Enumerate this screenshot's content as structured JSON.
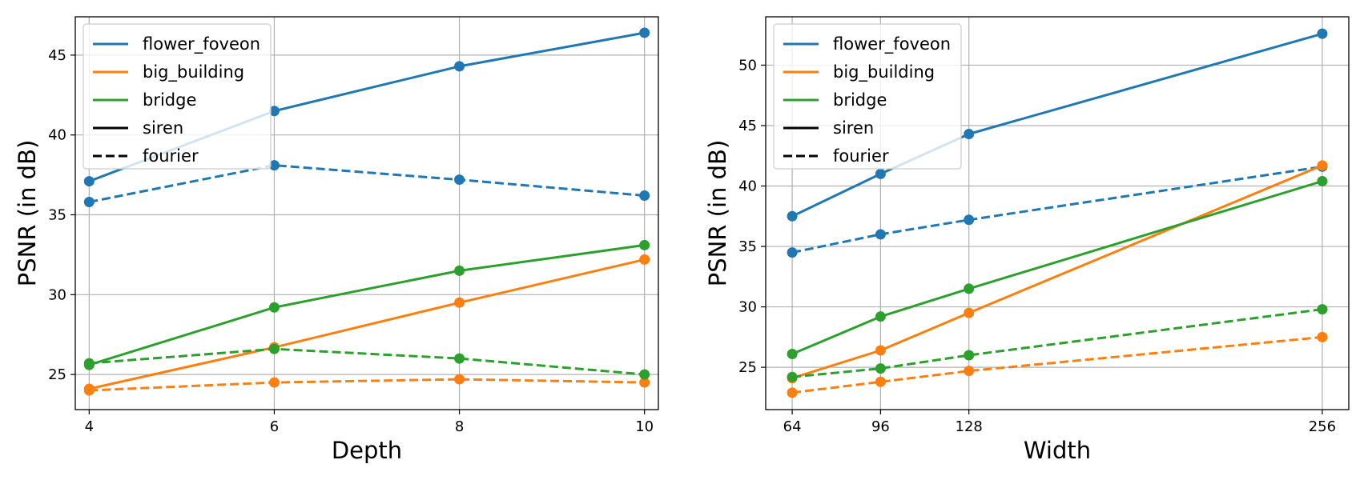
{
  "chart_data": [
    {
      "type": "line",
      "xlabel": "Depth",
      "ylabel": "PSNR (in dB)",
      "xlim": [
        3.85,
        10.15
      ],
      "ylim": [
        22.8,
        47.4
      ],
      "xticks": [
        4,
        6,
        8,
        10
      ],
      "yticks": [
        25,
        30,
        35,
        40,
        45
      ],
      "grid": true,
      "legend": {
        "position": "top-left",
        "entries": [
          {
            "label": "flower_foveon",
            "color": "#1f77b4",
            "style": "solid"
          },
          {
            "label": "big_building",
            "color": "#ff7f0e",
            "style": "solid"
          },
          {
            "label": "bridge",
            "color": "#2ca02c",
            "style": "solid"
          },
          {
            "label": "siren",
            "color": "#000000",
            "style": "solid"
          },
          {
            "label": "fourier",
            "color": "#000000",
            "style": "dashed"
          }
        ]
      },
      "x": [
        4,
        6,
        8,
        10
      ],
      "series": [
        {
          "image": "flower_foveon",
          "model": "siren",
          "color": "#1f77b4",
          "dashed": false,
          "values": [
            37.1,
            41.5,
            44.3,
            46.4
          ]
        },
        {
          "image": "flower_foveon",
          "model": "fourier",
          "color": "#1f77b4",
          "dashed": true,
          "values": [
            35.8,
            38.1,
            37.2,
            36.2
          ]
        },
        {
          "image": "big_building",
          "model": "siren",
          "color": "#ff7f0e",
          "dashed": false,
          "values": [
            24.1,
            26.7,
            29.5,
            32.2
          ]
        },
        {
          "image": "big_building",
          "model": "fourier",
          "color": "#ff7f0e",
          "dashed": true,
          "values": [
            24.0,
            24.5,
            24.7,
            24.5
          ]
        },
        {
          "image": "bridge",
          "model": "siren",
          "color": "#2ca02c",
          "dashed": false,
          "values": [
            25.6,
            29.2,
            31.5,
            33.1
          ]
        },
        {
          "image": "bridge",
          "model": "fourier",
          "color": "#2ca02c",
          "dashed": true,
          "values": [
            25.7,
            26.6,
            26.0,
            25.0
          ]
        }
      ]
    },
    {
      "type": "line",
      "xlabel": "Width",
      "ylabel": "PSNR (in dB)",
      "xlim": [
        54.4,
        265.6
      ],
      "ylim": [
        21.5,
        54.0
      ],
      "xticks": [
        64,
        96,
        128,
        256
      ],
      "yticks": [
        25,
        30,
        35,
        40,
        45,
        50
      ],
      "grid": true,
      "legend": {
        "position": "top-left",
        "entries": [
          {
            "label": "flower_foveon",
            "color": "#1f77b4",
            "style": "solid"
          },
          {
            "label": "big_building",
            "color": "#ff7f0e",
            "style": "solid"
          },
          {
            "label": "bridge",
            "color": "#2ca02c",
            "style": "solid"
          },
          {
            "label": "siren",
            "color": "#000000",
            "style": "solid"
          },
          {
            "label": "fourier",
            "color": "#000000",
            "style": "dashed"
          }
        ]
      },
      "x": [
        64,
        96,
        128,
        256
      ],
      "series": [
        {
          "image": "flower_foveon",
          "model": "siren",
          "color": "#1f77b4",
          "dashed": false,
          "values": [
            37.5,
            41.0,
            44.3,
            52.6
          ]
        },
        {
          "image": "flower_foveon",
          "model": "fourier",
          "color": "#1f77b4",
          "dashed": true,
          "values": [
            34.5,
            36.0,
            37.2,
            41.6
          ]
        },
        {
          "image": "big_building",
          "model": "siren",
          "color": "#ff7f0e",
          "dashed": false,
          "values": [
            24.1,
            26.4,
            29.5,
            41.7
          ]
        },
        {
          "image": "big_building",
          "model": "fourier",
          "color": "#ff7f0e",
          "dashed": true,
          "values": [
            22.9,
            23.8,
            24.7,
            27.5
          ]
        },
        {
          "image": "bridge",
          "model": "siren",
          "color": "#2ca02c",
          "dashed": false,
          "values": [
            26.1,
            29.2,
            31.5,
            40.4
          ]
        },
        {
          "image": "bridge",
          "model": "fourier",
          "color": "#2ca02c",
          "dashed": true,
          "values": [
            24.2,
            24.9,
            26.0,
            29.8
          ]
        }
      ]
    }
  ]
}
